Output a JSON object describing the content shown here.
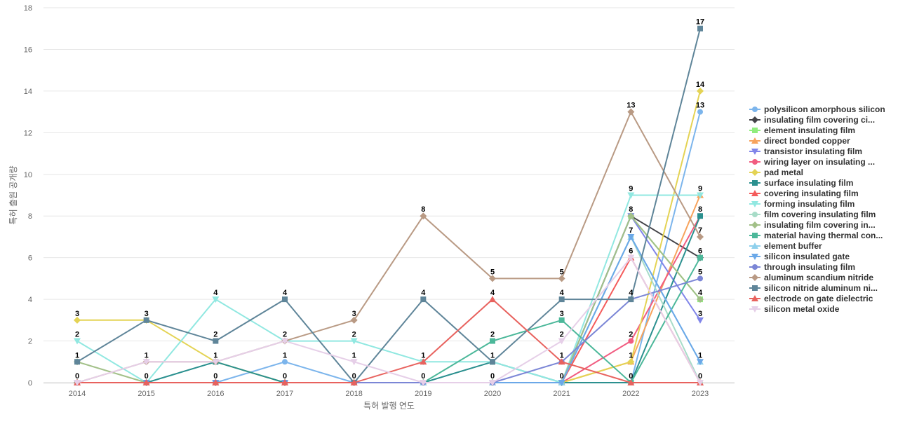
{
  "chart_data": {
    "type": "line",
    "title": "",
    "xlabel": "특허 발행 연도",
    "ylabel": "특허 출원 공개량",
    "ylim": [
      0,
      18
    ],
    "y_ticks": [
      0,
      2,
      4,
      6,
      8,
      10,
      12,
      14,
      16,
      18
    ],
    "grid": true,
    "legend_position": "right",
    "categories": [
      "2014",
      "2015",
      "2016",
      "2017",
      "2018",
      "2019",
      "2020",
      "2021",
      "2022",
      "2023"
    ],
    "series": [
      {
        "name": "polysilicon amorphous silicon",
        "color": "#7cb5ec",
        "marker": "circle",
        "values": [
          0,
          0,
          0,
          1,
          0,
          0,
          0,
          0,
          0,
          13
        ]
      },
      {
        "name": "insulating film covering ci...",
        "color": "#434348",
        "marker": "diamond",
        "values": [
          0,
          0,
          0,
          0,
          0,
          0,
          0,
          0,
          8,
          6
        ]
      },
      {
        "name": "element insulating film",
        "color": "#90ed7d",
        "marker": "square",
        "values": [
          0,
          0,
          0,
          0,
          0,
          0,
          0,
          0,
          8,
          4
        ]
      },
      {
        "name": "direct bonded copper",
        "color": "#f7a35c",
        "marker": "triangle",
        "values": [
          0,
          0,
          0,
          0,
          0,
          0,
          0,
          0,
          1,
          9
        ]
      },
      {
        "name": "transistor insulating film",
        "color": "#8085e9",
        "marker": "triangle-down",
        "values": [
          0,
          0,
          0,
          0,
          0,
          0,
          0,
          0,
          8,
          3
        ]
      },
      {
        "name": "wiring layer on insulating ...",
        "color": "#f15c80",
        "marker": "circle",
        "values": [
          0,
          0,
          0,
          0,
          0,
          0,
          0,
          0,
          2,
          8
        ]
      },
      {
        "name": "pad metal",
        "color": "#e4d354",
        "marker": "diamond",
        "values": [
          3,
          3,
          1,
          0,
          0,
          0,
          0,
          0,
          1,
          14
        ]
      },
      {
        "name": "surface insulating film",
        "color": "#2b908f",
        "marker": "square",
        "values": [
          0,
          0,
          1,
          0,
          0,
          0,
          1,
          0,
          0,
          8
        ]
      },
      {
        "name": "covering insulating film",
        "color": "#f45b5b",
        "marker": "triangle",
        "values": [
          0,
          0,
          0,
          0,
          0,
          0,
          0,
          0,
          6,
          0
        ]
      },
      {
        "name": "forming insulating film",
        "color": "#91e8e1",
        "marker": "triangle-down",
        "values": [
          2,
          0,
          4,
          2,
          2,
          1,
          1,
          0,
          9,
          9
        ]
      },
      {
        "name": "film covering insulating film",
        "color": "#a8dcc8",
        "marker": "circle",
        "values": [
          0,
          0,
          0,
          0,
          0,
          0,
          0,
          0,
          7,
          0
        ]
      },
      {
        "name": "insulating film covering in...",
        "color": "#a2c088",
        "marker": "diamond",
        "values": [
          1,
          0,
          0,
          0,
          0,
          0,
          0,
          0,
          8,
          4
        ]
      },
      {
        "name": "material having thermal con...",
        "color": "#4cb89a",
        "marker": "square",
        "values": [
          0,
          0,
          0,
          0,
          0,
          0,
          2,
          3,
          0,
          6
        ]
      },
      {
        "name": "element buffer",
        "color": "#8fd0ec",
        "marker": "triangle",
        "values": [
          0,
          0,
          0,
          0,
          0,
          0,
          0,
          0,
          7,
          1
        ]
      },
      {
        "name": "silicon insulated gate",
        "color": "#6ba8e8",
        "marker": "triangle-down",
        "values": [
          0,
          0,
          0,
          0,
          0,
          0,
          0,
          0,
          7,
          1
        ]
      },
      {
        "name": "through insulating film",
        "color": "#7b86d6",
        "marker": "circle",
        "values": [
          0,
          0,
          0,
          0,
          0,
          0,
          0,
          1,
          4,
          5
        ]
      },
      {
        "name": "aluminum scandium nitride",
        "color": "#b99a84",
        "marker": "diamond",
        "values": [
          0,
          1,
          1,
          2,
          3,
          8,
          5,
          5,
          13,
          7
        ]
      },
      {
        "name": "silicon nitride aluminum ni...",
        "color": "#5f8599",
        "marker": "square",
        "values": [
          1,
          3,
          2,
          4,
          0,
          4,
          1,
          4,
          4,
          17
        ]
      },
      {
        "name": "electrode on gate dielectric",
        "color": "#e8625e",
        "marker": "triangle",
        "values": [
          0,
          0,
          0,
          0,
          0,
          1,
          4,
          1,
          0,
          0
        ]
      },
      {
        "name": "silicon metal oxide",
        "color": "#e6cfe8",
        "marker": "triangle-down",
        "values": [
          0,
          1,
          1,
          2,
          1,
          0,
          0,
          2,
          6,
          0
        ]
      }
    ],
    "data_labels": [
      {
        "x": "2014",
        "y": 3,
        "text": "3"
      },
      {
        "x": "2014",
        "y": 2,
        "text": "2"
      },
      {
        "x": "2014",
        "y": 1,
        "text": "1"
      },
      {
        "x": "2014",
        "y": 0,
        "text": "0"
      },
      {
        "x": "2015",
        "y": 3,
        "text": "3"
      },
      {
        "x": "2015",
        "y": 1,
        "text": "1"
      },
      {
        "x": "2015",
        "y": 0,
        "text": "0"
      },
      {
        "x": "2016",
        "y": 4,
        "text": "4"
      },
      {
        "x": "2016",
        "y": 2,
        "text": "2"
      },
      {
        "x": "2016",
        "y": 1,
        "text": "1"
      },
      {
        "x": "2016",
        "y": 0,
        "text": "0"
      },
      {
        "x": "2017",
        "y": 4,
        "text": "4"
      },
      {
        "x": "2017",
        "y": 2,
        "text": "2"
      },
      {
        "x": "2017",
        "y": 1,
        "text": "1"
      },
      {
        "x": "2017",
        "y": 0,
        "text": "0"
      },
      {
        "x": "2018",
        "y": 3,
        "text": "3"
      },
      {
        "x": "2018",
        "y": 2,
        "text": "2"
      },
      {
        "x": "2018",
        "y": 1,
        "text": "1"
      },
      {
        "x": "2018",
        "y": 0,
        "text": "0"
      },
      {
        "x": "2019",
        "y": 8,
        "text": "8"
      },
      {
        "x": "2019",
        "y": 4,
        "text": "4"
      },
      {
        "x": "2019",
        "y": 1,
        "text": "1"
      },
      {
        "x": "2019",
        "y": 0,
        "text": "0"
      },
      {
        "x": "2020",
        "y": 5,
        "text": "5"
      },
      {
        "x": "2020",
        "y": 4,
        "text": "4"
      },
      {
        "x": "2020",
        "y": 2,
        "text": "2"
      },
      {
        "x": "2020",
        "y": 1,
        "text": "1"
      },
      {
        "x": "2020",
        "y": 0,
        "text": "0"
      },
      {
        "x": "2021",
        "y": 5,
        "text": "5"
      },
      {
        "x": "2021",
        "y": 4,
        "text": "4"
      },
      {
        "x": "2021",
        "y": 3,
        "text": "3"
      },
      {
        "x": "2021",
        "y": 2,
        "text": "2"
      },
      {
        "x": "2021",
        "y": 1,
        "text": "1"
      },
      {
        "x": "2021",
        "y": 0,
        "text": "0"
      },
      {
        "x": "2022",
        "y": 13,
        "text": "13"
      },
      {
        "x": "2022",
        "y": 9,
        "text": "9"
      },
      {
        "x": "2022",
        "y": 8,
        "text": "8"
      },
      {
        "x": "2022",
        "y": 7,
        "text": "7"
      },
      {
        "x": "2022",
        "y": 6,
        "text": "6"
      },
      {
        "x": "2022",
        "y": 4,
        "text": "4"
      },
      {
        "x": "2022",
        "y": 2,
        "text": "2"
      },
      {
        "x": "2022",
        "y": 1,
        "text": "1"
      },
      {
        "x": "2022",
        "y": 0,
        "text": "0"
      },
      {
        "x": "2023",
        "y": 17,
        "text": "17"
      },
      {
        "x": "2023",
        "y": 14,
        "text": "14"
      },
      {
        "x": "2023",
        "y": 13,
        "text": "13"
      },
      {
        "x": "2023",
        "y": 9,
        "text": "9"
      },
      {
        "x": "2023",
        "y": 8,
        "text": "8"
      },
      {
        "x": "2023",
        "y": 7,
        "text": "7"
      },
      {
        "x": "2023",
        "y": 6,
        "text": "6"
      },
      {
        "x": "2023",
        "y": 5,
        "text": "5"
      },
      {
        "x": "2023",
        "y": 4,
        "text": "4"
      },
      {
        "x": "2023",
        "y": 3,
        "text": "3"
      },
      {
        "x": "2023",
        "y": 1,
        "text": "1"
      },
      {
        "x": "2023",
        "y": 0,
        "text": "0"
      }
    ]
  }
}
